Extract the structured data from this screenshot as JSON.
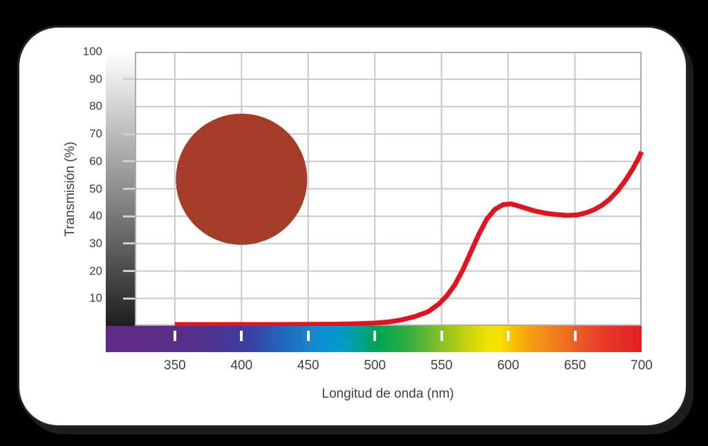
{
  "page": {
    "background_color": "#000000",
    "card_background": "#ffffff",
    "card_ring_color": "#1d1d1d"
  },
  "chart_data": {
    "type": "line",
    "title": "",
    "xlabel": "Longitud de onda (nm)",
    "ylabel": "Transmisión (%)",
    "xlim": [
      320,
      700
    ],
    "ylim": [
      0,
      100
    ],
    "x_ticks": [
      350,
      400,
      450,
      500,
      550,
      600,
      650,
      700
    ],
    "y_ticks": [
      10,
      20,
      30,
      40,
      50,
      60,
      70,
      80,
      90,
      100
    ],
    "grid": true,
    "gridline_color": "#c9c9c9",
    "axis_border_color": "#ababab",
    "label_color": "#3e3e3e",
    "x_tick_mark_color": "#ffffff",
    "y_tick_mark_color": "#cfcfcf",
    "series": [
      {
        "name": "transmission-curve",
        "color": "#e2131f",
        "stroke_width": 7,
        "points": [
          [
            350,
            0.5
          ],
          [
            375,
            0.5
          ],
          [
            400,
            0.5
          ],
          [
            425,
            0.5
          ],
          [
            450,
            0.55
          ],
          [
            470,
            0.6
          ],
          [
            485,
            0.75
          ],
          [
            500,
            1.0
          ],
          [
            510,
            1.4
          ],
          [
            520,
            2.2
          ],
          [
            530,
            3.4
          ],
          [
            540,
            5.2
          ],
          [
            548,
            8.0
          ],
          [
            554,
            11.0
          ],
          [
            560,
            15.0
          ],
          [
            566,
            20.5
          ],
          [
            572,
            27.0
          ],
          [
            578,
            33.5
          ],
          [
            584,
            39.0
          ],
          [
            590,
            42.5
          ],
          [
            596,
            44.2
          ],
          [
            602,
            44.5
          ],
          [
            608,
            43.7
          ],
          [
            614,
            42.8
          ],
          [
            620,
            41.9
          ],
          [
            628,
            41.1
          ],
          [
            636,
            40.6
          ],
          [
            644,
            40.3
          ],
          [
            652,
            40.5
          ],
          [
            658,
            41.2
          ],
          [
            664,
            42.3
          ],
          [
            670,
            43.9
          ],
          [
            676,
            46.2
          ],
          [
            682,
            49.3
          ],
          [
            688,
            53.2
          ],
          [
            693,
            57.0
          ],
          [
            697,
            60.5
          ],
          [
            700,
            63.5
          ]
        ]
      }
    ],
    "filter_swatch_circle": {
      "fill": "#a43c28",
      "center_x_nm": 400,
      "center_y_pct": 53.5,
      "radius_px": 95
    },
    "y_axis_gradient_strip": {
      "top": "#ffffff",
      "bottom": "#1e1e1e"
    },
    "x_axis_spectrum_stops": [
      {
        "pos": 0,
        "color": "#5e2c87"
      },
      {
        "pos": 12.6,
        "color": "#5b2d88"
      },
      {
        "pos": 20,
        "color": "#4c3190"
      },
      {
        "pos": 27,
        "color": "#3941a3"
      },
      {
        "pos": 32,
        "color": "#2660b8"
      },
      {
        "pos": 36,
        "color": "#1b7ac6"
      },
      {
        "pos": 40,
        "color": "#0f8ed2"
      },
      {
        "pos": 44,
        "color": "#009bc8"
      },
      {
        "pos": 47.5,
        "color": "#00a295"
      },
      {
        "pos": 50.3,
        "color": "#00a455"
      },
      {
        "pos": 54,
        "color": "#1ca94a"
      },
      {
        "pos": 58,
        "color": "#46b23b"
      },
      {
        "pos": 62,
        "color": "#7fc02b"
      },
      {
        "pos": 65,
        "color": "#a7ca19"
      },
      {
        "pos": 68,
        "color": "#cdd60a"
      },
      {
        "pos": 71,
        "color": "#eee000"
      },
      {
        "pos": 73.5,
        "color": "#f8e000"
      },
      {
        "pos": 76,
        "color": "#f9c100"
      },
      {
        "pos": 78.5,
        "color": "#f7a50e"
      },
      {
        "pos": 82,
        "color": "#f28a1b"
      },
      {
        "pos": 85.5,
        "color": "#ee7120"
      },
      {
        "pos": 89,
        "color": "#ea5526"
      },
      {
        "pos": 93,
        "color": "#e63b27"
      },
      {
        "pos": 100,
        "color": "#e31e25"
      }
    ]
  }
}
